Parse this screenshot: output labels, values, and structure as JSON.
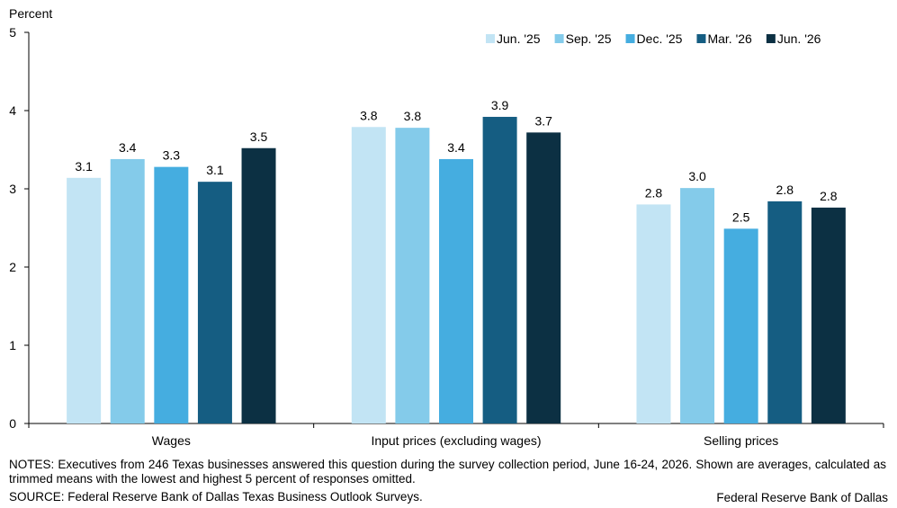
{
  "chart_data": {
    "type": "bar",
    "ylabel": "Percent",
    "ylim": [
      0,
      5
    ],
    "yticks": [
      "0",
      "1",
      "2",
      "3",
      "4",
      "5"
    ],
    "categories": [
      "Wages",
      "Input prices (excluding wages)",
      "Selling prices"
    ],
    "series": [
      {
        "name": "Jun. '25",
        "color": "#c2e4f4",
        "values": [
          3.14,
          3.79,
          2.8
        ],
        "labels": [
          "3.1",
          "3.8",
          "2.8"
        ]
      },
      {
        "name": "Sep. '25",
        "color": "#84cbea",
        "values": [
          3.38,
          3.78,
          3.01
        ],
        "labels": [
          "3.4",
          "3.8",
          "3.0"
        ]
      },
      {
        "name": "Dec. '25",
        "color": "#45ade0",
        "values": [
          3.28,
          3.38,
          2.49
        ],
        "labels": [
          "3.3",
          "3.4",
          "2.5"
        ]
      },
      {
        "name": "Mar. '26",
        "color": "#155d82",
        "values": [
          3.09,
          3.92,
          2.84
        ],
        "labels": [
          "3.1",
          "3.9",
          "2.8"
        ]
      },
      {
        "name": "Jun. '26",
        "color": "#0c3043",
        "values": [
          3.52,
          3.72,
          2.76
        ],
        "labels": [
          "3.5",
          "3.7",
          "2.8"
        ]
      }
    ],
    "legend_position": "top-right",
    "grid": false
  },
  "notes": "NOTES: Executives from 246 Texas businesses answered this question during the survey collection period, June 16-24, 2026. Shown are averages, calculated as trimmed means with the lowest and highest 5 percent of responses omitted.",
  "source": "SOURCE: Federal Reserve Bank of Dallas Texas Business Outlook Surveys.",
  "credit": "Federal Reserve Bank of Dallas"
}
